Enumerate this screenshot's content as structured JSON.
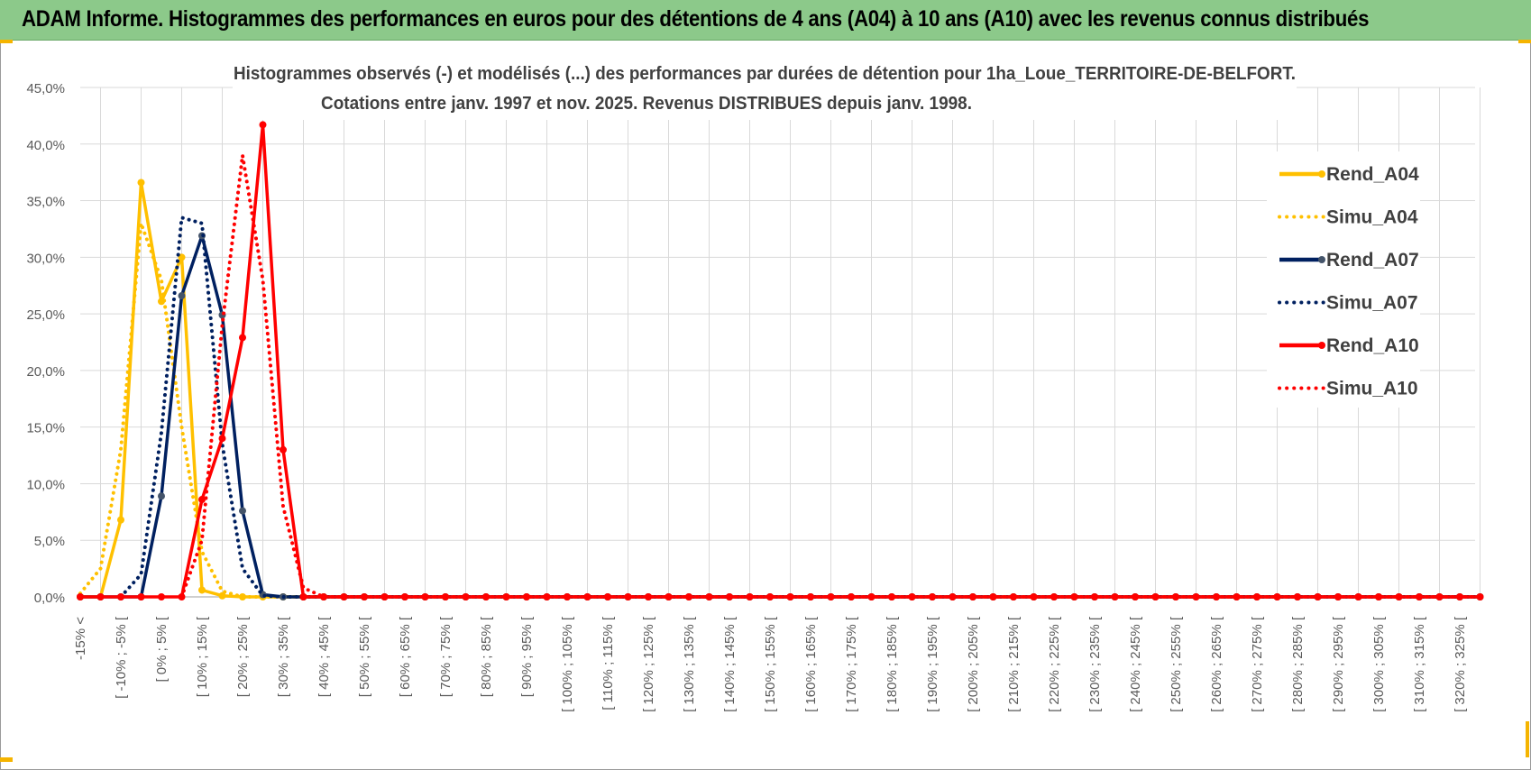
{
  "header": {
    "title": "ADAM Informe. Histogrammes des performances en euros pour des détentions de 4 ans (A04) à 10 ans (A10) avec les revenus connus distribués"
  },
  "colors": {
    "banner": "#8cc98a",
    "A04": "#ffc000",
    "A07": "#002060",
    "A10": "#ff0000",
    "grid": "#d9d9d9",
    "axis_text": "#595959",
    "title_text": "#404040"
  },
  "chart_data": {
    "type": "line",
    "title": "Histogrammes observés (-) et modélisés (...) des performances par durées de détention pour 1ha_Loue_TERRITOIRE-DE-BELFORT.",
    "subtitle": "Cotations entre janv. 1997 et nov. 2025. Revenus DISTRIBUES depuis janv. 1998.",
    "xlabel": "",
    "ylabel": "",
    "ylim": [
      0,
      45
    ],
    "y_ticks": [
      "0,0%",
      "5,0%",
      "10,0%",
      "15,0%",
      "20,0%",
      "25,0%",
      "30,0%",
      "35,0%",
      "40,0%",
      "45,0%"
    ],
    "grid": true,
    "legend_position": "right",
    "categories": [
      "-15% <",
      "[ -10% ; -5% [",
      "[ 0% ; 5% [",
      "[ 10% ; 15% [",
      "[ 20% ; 25% [",
      "[ 30% ; 35% [",
      "[ 40% ; 45% [",
      "[ 50% ; 55% [",
      "[ 60% ; 65% [",
      "[ 70% ; 75% [",
      "[ 80% ; 85% [",
      "[ 90% ; 95% [",
      "[ 100% ; 105% [",
      "[ 110% ; 115% [",
      "[ 120% ; 125% [",
      "[ 130% ; 135% [",
      "[ 140% ; 145% [",
      "[ 150% ; 155% [",
      "[ 160% ; 165% [",
      "[ 170% ; 175% [",
      "[ 180% ; 185% [",
      "[ 190% ; 195% [",
      "[ 200% ; 205% [",
      "[ 210% ; 215% [",
      "[ 220% ; 225% [",
      "[ 230% ; 235% [",
      "[ 240% ; 245% [",
      "[ 250% ; 255% [",
      "[ 260% ; 265% [",
      "[ 270% ; 275% [",
      "[ 280% ; 285% [",
      "[ 290% ; 295% [",
      "[ 300% ; 305% [",
      "[ 310% ; 315% [",
      "[ 320% ; 325% ["
    ],
    "x_step": 5,
    "x_start": -15,
    "x_end": 330,
    "series": [
      {
        "name": "Rend_A04",
        "style": "solid",
        "color": "#ffc000",
        "x": [
          -15,
          -10,
          -5,
          0,
          5,
          10,
          15,
          20,
          25,
          30,
          35,
          40
        ],
        "y": [
          0,
          0,
          6.8,
          36.6,
          26.1,
          30.0,
          0.6,
          0.1,
          0,
          0,
          0,
          0
        ]
      },
      {
        "name": "Simu_A04",
        "style": "dotted",
        "color": "#ffc000",
        "x": [
          -15,
          -10,
          -5,
          0,
          5,
          10,
          15,
          20,
          25,
          30
        ],
        "y": [
          0.3,
          2.5,
          13.0,
          33.0,
          28.0,
          15.0,
          4.0,
          0.5,
          0,
          0
        ]
      },
      {
        "name": "Rend_A07",
        "style": "solid",
        "color": "#002060",
        "x": [
          -15,
          -10,
          -5,
          0,
          5,
          10,
          15,
          20,
          25,
          30,
          35,
          40
        ],
        "y": [
          0,
          0,
          0,
          0,
          8.9,
          26.6,
          31.9,
          24.9,
          7.6,
          0.2,
          0,
          0
        ]
      },
      {
        "name": "Simu_A07",
        "style": "dotted",
        "color": "#002060",
        "x": [
          -5,
          0,
          5,
          10,
          15,
          20,
          25,
          30
        ],
        "y": [
          0,
          2.0,
          14.5,
          33.5,
          33.0,
          13.5,
          2.5,
          0.1
        ]
      },
      {
        "name": "Rend_A10",
        "style": "solid",
        "color": "#ff0000",
        "x": [
          -15,
          -10,
          -5,
          0,
          5,
          10,
          15,
          20,
          25,
          30,
          35,
          40,
          45
        ],
        "y": [
          0,
          0,
          0,
          0,
          0,
          0,
          8.6,
          14.0,
          22.9,
          41.7,
          13.0,
          0,
          0
        ]
      },
      {
        "name": "Simu_A10",
        "style": "dotted",
        "color": "#ff0000",
        "x": [
          10,
          15,
          20,
          25,
          30,
          35,
          40,
          45
        ],
        "y": [
          0,
          5.0,
          24.0,
          39.0,
          28.0,
          8.0,
          0.8,
          0
        ]
      }
    ]
  }
}
